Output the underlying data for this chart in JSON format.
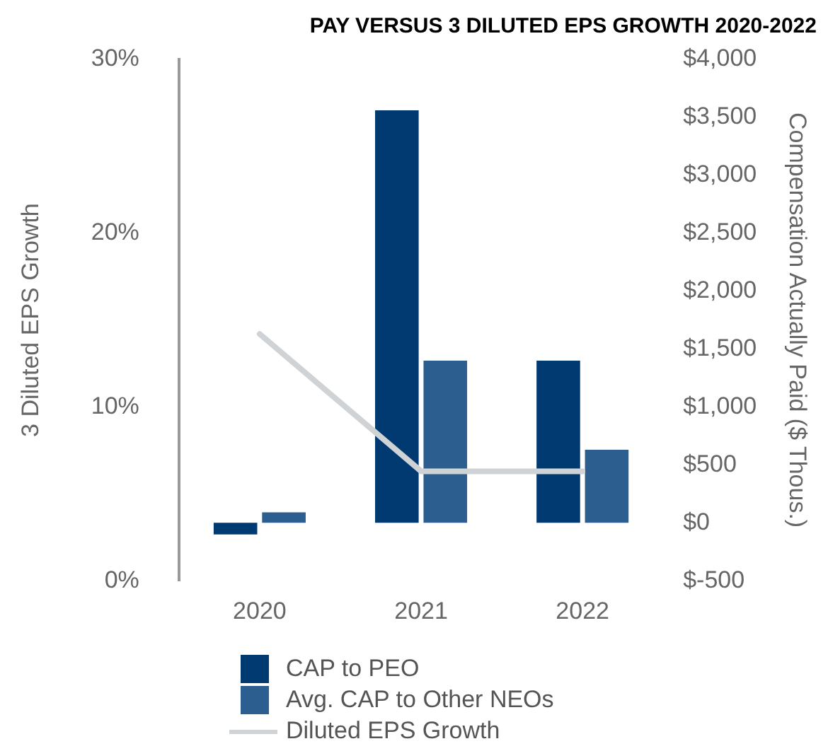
{
  "chart_data": {
    "type": "bar",
    "title": "PAY VERSUS 3 DILUTED EPS GROWTH 2020-2022",
    "ylabel": "3 Diluted EPS Growth",
    "y2label": "Compensation Actually Paid ($ Thous.)",
    "categories": [
      "2020",
      "2021",
      "2022"
    ],
    "series": [
      {
        "name": "CAP to PEO",
        "color": "#003a70",
        "values": [
          -100,
          3560,
          1400
        ],
        "axis": "y2"
      },
      {
        "name": "Avg. CAP to Other NEOs",
        "color": "#2c5e8f",
        "values": [
          90,
          1400,
          630
        ],
        "axis": "y2"
      },
      {
        "name": "Diluted EPS Growth",
        "type": "line",
        "color": "#d0d3d6",
        "values": [
          14.2,
          6.3,
          6.3
        ],
        "axis": "y",
        "marker": "none"
      }
    ],
    "ylim": [
      0,
      30
    ],
    "yticks": [
      {
        "value": 0,
        "label": "0%"
      },
      {
        "value": 10,
        "label": "10%"
      },
      {
        "value": 20,
        "label": "20%"
      },
      {
        "value": 30,
        "label": "30%"
      }
    ],
    "y2lim": [
      -500,
      4000
    ],
    "y2ticks": [
      {
        "value": -500,
        "label": "$-500"
      },
      {
        "value": 0,
        "label": "$0"
      },
      {
        "value": 500,
        "label": "$500"
      },
      {
        "value": 1000,
        "label": "$1,000"
      },
      {
        "value": 1500,
        "label": "$1,500"
      },
      {
        "value": 2000,
        "label": "$2,000"
      },
      {
        "value": 2500,
        "label": "$2,500"
      },
      {
        "value": 3000,
        "label": "$3,000"
      },
      {
        "value": 3500,
        "label": "$3,500"
      },
      {
        "value": 4000,
        "label": "$4,000"
      }
    ],
    "grid": false,
    "legend": "bottom"
  }
}
